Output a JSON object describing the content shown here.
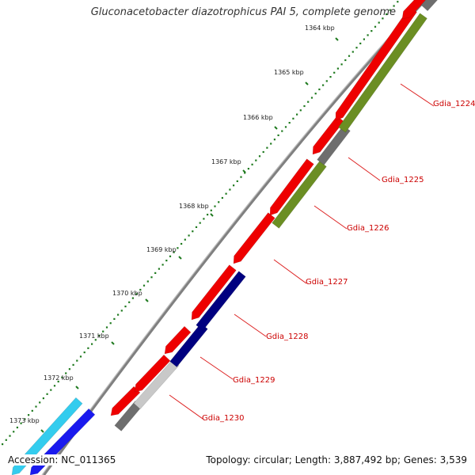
{
  "title": "Gluconacetobacter diazotrophicus PAI 5, complete genome",
  "footer": {
    "accession": "Accession: NC_011365",
    "summary": "Topology: circular; Length: 3,887,492 bp; Genes: 3,539"
  },
  "colors": {
    "backbone": "#808080",
    "ticks": "#1f7a1f",
    "label": "#cc0000",
    "callout": "#dd2222",
    "red": "#ee0000",
    "olive": "#6b8e23",
    "navy": "#000080",
    "dark_gray": "#6e6e6e",
    "light_gray": "#c8c8c8",
    "cyan": "#33ccee",
    "blue": "#1a1aee"
  },
  "ticks": [
    {
      "label": "1364 kbp"
    },
    {
      "label": "1365 kbp"
    },
    {
      "label": "1366 kbp"
    },
    {
      "label": "1367 kbp"
    },
    {
      "label": "1368 kbp"
    },
    {
      "label": "1369 kbp"
    },
    {
      "label": "1370 kbp"
    },
    {
      "label": "1371 kbp"
    },
    {
      "label": "1372 kbp"
    },
    {
      "label": "1373 kbp"
    }
  ],
  "gene_labels": [
    {
      "label": "Gdia_1224"
    },
    {
      "label": "Gdia_1225"
    },
    {
      "label": "Gdia_1226"
    },
    {
      "label": "Gdia_1227"
    },
    {
      "label": "Gdia_1228"
    },
    {
      "label": "Gdia_1229"
    },
    {
      "label": "Gdia_1230"
    }
  ]
}
